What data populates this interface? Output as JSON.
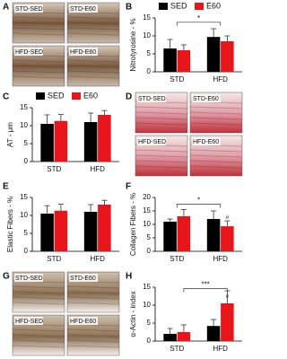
{
  "images": [
    {
      "panel": "A",
      "labels": [
        "STD-SED",
        "STD-E60",
        "HFD-SED",
        "HFD-E60"
      ]
    },
    {
      "panel": "D",
      "labels": [
        "STD-SED",
        "STD-E60",
        "HFD-SED",
        "HFD-E60"
      ]
    },
    {
      "panel": "G",
      "labels": [
        "STD-SED",
        "STD-E60",
        "HFD-SED",
        "HFD-E60"
      ]
    }
  ],
  "chart_data": [
    {
      "type": "bar",
      "panel": "B",
      "y_label": "Nitrotyrosine - %",
      "categories": [
        "STD",
        "HFD"
      ],
      "legend": "top",
      "series": [
        {
          "name": "SED",
          "color": "#000000",
          "values": [
            6.5,
            9.7
          ],
          "errors": [
            2.5,
            2.3
          ]
        },
        {
          "name": "E60",
          "color": "#e8151b",
          "values": [
            6,
            8.5
          ],
          "errors": [
            1.5,
            1.5
          ]
        }
      ],
      "ylim": [
        0,
        15
      ],
      "yticks": [
        0,
        5,
        10,
        15
      ],
      "annotations": [
        "*"
      ]
    },
    {
      "type": "bar",
      "panel": "C",
      "y_label": "AT - μm",
      "categories": [
        "STD",
        "HFD"
      ],
      "legend": "top",
      "series": [
        {
          "name": "SED",
          "color": "#000000",
          "values": [
            10.5,
            11
          ],
          "errors": [
            2.5,
            2.5
          ]
        },
        {
          "name": "E60",
          "color": "#e8151b",
          "values": [
            11.3,
            13
          ],
          "errors": [
            1.8,
            1.2
          ]
        }
      ],
      "ylim": [
        0,
        15
      ],
      "yticks": [
        0,
        5,
        10,
        15
      ],
      "annotations": []
    },
    {
      "type": "bar",
      "panel": "E",
      "y_label": "Elastic Fibers - %",
      "categories": [
        "STD",
        "HFD"
      ],
      "series": [
        {
          "name": "SED",
          "color": "#000000",
          "values": [
            10.5,
            11
          ],
          "errors": [
            2.2,
            2
          ]
        },
        {
          "name": "E60",
          "color": "#e8151b",
          "values": [
            11.3,
            13
          ],
          "errors": [
            1.8,
            1.2
          ]
        }
      ],
      "ylim": [
        0,
        15
      ],
      "yticks": [
        0,
        5,
        10,
        15
      ],
      "annotations": []
    },
    {
      "type": "bar",
      "panel": "F",
      "y_label": "Collagen Fibers - %",
      "categories": [
        "STD",
        "HFD"
      ],
      "series": [
        {
          "name": "SED",
          "color": "#000000",
          "values": [
            11,
            12
          ],
          "errors": [
            1,
            3
          ]
        },
        {
          "name": "E60",
          "color": "#e8151b",
          "values": [
            13,
            9.3
          ],
          "errors": [
            2.5,
            2
          ]
        }
      ],
      "ylim": [
        0,
        20
      ],
      "yticks": [
        0,
        5,
        10,
        15,
        20
      ],
      "annotations": [
        "*",
        "#"
      ]
    },
    {
      "type": "bar",
      "panel": "H",
      "y_label": "α-Actin - index",
      "categories": [
        "STD",
        "HFD"
      ],
      "series": [
        {
          "name": "SED",
          "color": "#000000",
          "values": [
            2,
            4.2
          ],
          "errors": [
            1.5,
            1.8
          ]
        },
        {
          "name": "E60",
          "color": "#e8151b",
          "values": [
            2.5,
            10.5
          ],
          "errors": [
            2,
            3.5
          ]
        }
      ],
      "ylim": [
        0,
        15
      ],
      "yticks": [
        0,
        5,
        10,
        15
      ],
      "annotations": [
        "***",
        "#"
      ]
    }
  ]
}
